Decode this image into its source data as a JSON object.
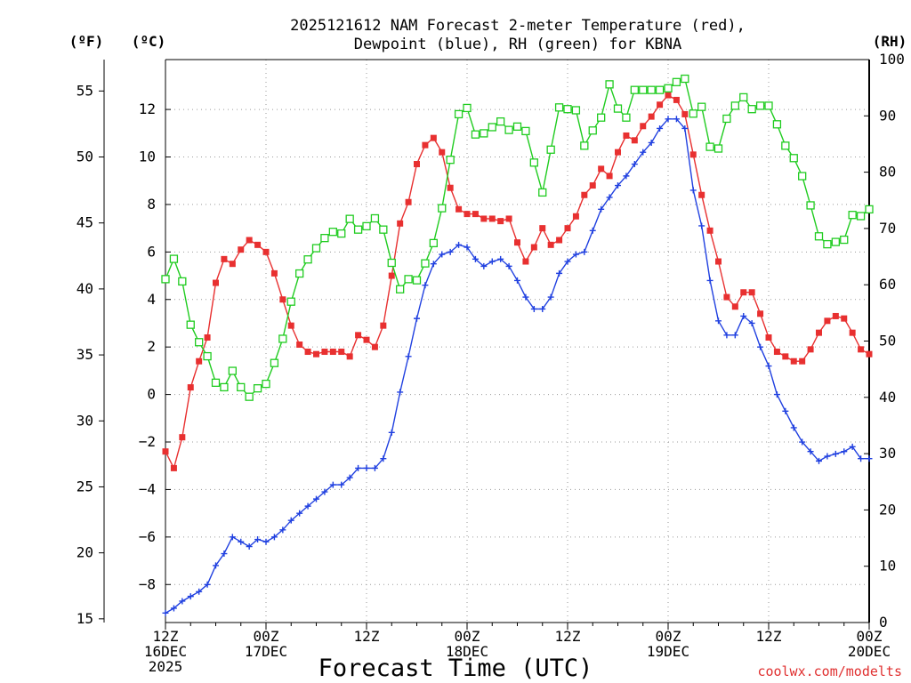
{
  "chart_data": {
    "type": "line",
    "title": [
      "2025121612 NAM Forecast 2-meter Temperature (red),",
      "Dewpoint (blue), RH (green) for KBNA"
    ],
    "xlabel": "Forecast Time (UTC)",
    "credit": "coolwx.com/modelts",
    "units": {
      "fahrenheit": "(ºF)",
      "celsius": "(ºC)",
      "rh": "(RH)"
    },
    "x_hours_range": [
      0,
      84
    ],
    "x_ticks": [
      {
        "hour": 0,
        "lines": [
          "12Z",
          "16DEC",
          "2025"
        ]
      },
      {
        "hour": 12,
        "lines": [
          "00Z",
          "17DEC"
        ]
      },
      {
        "hour": 24,
        "lines": [
          "12Z"
        ]
      },
      {
        "hour": 36,
        "lines": [
          "00Z",
          "18DEC"
        ]
      },
      {
        "hour": 48,
        "lines": [
          "12Z"
        ]
      },
      {
        "hour": 60,
        "lines": [
          "00Z",
          "19DEC"
        ]
      },
      {
        "hour": 72,
        "lines": [
          "12Z"
        ]
      },
      {
        "hour": 84,
        "lines": [
          "00Z",
          "20DEC"
        ]
      }
    ],
    "ylim_celsius": [
      -9.6,
      14.1
    ],
    "y_ticks_celsius": [
      "12",
      "10",
      "8",
      "6",
      "4",
      "2",
      "0",
      "−2",
      "−4",
      "−6",
      "−8"
    ],
    "y_ticks_fahrenheit": [
      "55",
      "50",
      "45",
      "40",
      "35",
      "30",
      "25",
      "20",
      "15"
    ],
    "ylim_rh": [
      0,
      100
    ],
    "y_ticks_rh": [
      "100",
      "90",
      "80",
      "70",
      "60",
      "50",
      "40",
      "30",
      "20",
      "10",
      "0"
    ],
    "hours": [
      0,
      1,
      2,
      3,
      4,
      5,
      6,
      7,
      8,
      9,
      10,
      11,
      12,
      13,
      14,
      15,
      16,
      17,
      18,
      19,
      20,
      21,
      22,
      23,
      24,
      25,
      26,
      27,
      28,
      29,
      30,
      31,
      32,
      33,
      34,
      35,
      36,
      37,
      38,
      39,
      40,
      41,
      42,
      43,
      44,
      45,
      46,
      47,
      48,
      49,
      50,
      51,
      52,
      53,
      54,
      55,
      56,
      57,
      58,
      59,
      60,
      61,
      62,
      63,
      64,
      65,
      66,
      67,
      68,
      69,
      70,
      71,
      72,
      73,
      74,
      75,
      76,
      77,
      78,
      79,
      80,
      81,
      82,
      83,
      84
    ],
    "series": [
      {
        "name": "Temperature (°C)",
        "color": "#e83030",
        "marker": "filled-square",
        "values": [
          -2.4,
          -3.1,
          -1.8,
          0.3,
          1.4,
          2.4,
          4.7,
          5.7,
          5.5,
          6.1,
          6.5,
          6.3,
          6.0,
          5.1,
          4.0,
          2.9,
          2.1,
          1.8,
          1.7,
          1.8,
          1.8,
          1.8,
          1.6,
          2.5,
          2.3,
          2.0,
          2.9,
          5.0,
          7.2,
          8.1,
          9.7,
          10.5,
          10.8,
          10.2,
          8.7,
          7.8,
          7.6,
          7.6,
          7.4,
          7.4,
          7.3,
          7.4,
          6.4,
          5.6,
          6.2,
          7.0,
          6.3,
          6.5,
          7.0,
          7.5,
          8.4,
          8.8,
          9.5,
          9.2,
          10.2,
          10.9,
          10.7,
          11.3,
          11.7,
          12.2,
          12.6,
          12.4,
          11.8,
          10.1,
          8.4,
          6.9,
          5.6,
          4.1,
          3.7,
          4.3,
          4.3,
          3.4,
          2.4,
          1.8,
          1.6,
          1.4,
          1.4,
          1.9,
          2.6,
          3.1,
          3.3,
          3.2,
          2.6,
          1.9,
          1.7
        ]
      },
      {
        "name": "Dewpoint (°C)",
        "color": "#2040e0",
        "marker": "plus",
        "values": [
          -9.2,
          -9.0,
          -8.7,
          -8.5,
          -8.3,
          -8.0,
          -7.2,
          -6.7,
          -6.0,
          -6.2,
          -6.4,
          -6.1,
          -6.2,
          -6.0,
          -5.7,
          -5.3,
          -5.0,
          -4.7,
          -4.4,
          -4.1,
          -3.8,
          -3.8,
          -3.5,
          -3.1,
          -3.1,
          -3.1,
          -2.7,
          -1.6,
          0.1,
          1.6,
          3.2,
          4.6,
          5.5,
          5.9,
          6.0,
          6.3,
          6.2,
          5.7,
          5.4,
          5.6,
          5.7,
          5.4,
          4.8,
          4.1,
          3.6,
          3.6,
          4.1,
          5.1,
          5.6,
          5.9,
          6.0,
          6.9,
          7.8,
          8.3,
          8.8,
          9.2,
          9.7,
          10.2,
          10.6,
          11.2,
          11.6,
          11.6,
          11.2,
          8.6,
          7.1,
          4.8,
          3.1,
          2.5,
          2.5,
          3.3,
          3.0,
          2.0,
          1.2,
          0.0,
          -0.7,
          -1.4,
          -2.0,
          -2.4,
          -2.8,
          -2.6,
          -2.5,
          -2.4,
          -2.2,
          -2.7,
          -2.7
        ]
      },
      {
        "name": "RH (%)",
        "color": "#20cc20",
        "marker": "open-square",
        "values": [
          61.0,
          64.6,
          60.6,
          52.9,
          49.8,
          47.3,
          42.6,
          41.8,
          44.7,
          41.8,
          40.1,
          41.6,
          42.4,
          46.1,
          50.4,
          57.0,
          62.0,
          64.5,
          66.5,
          68.3,
          69.4,
          69.1,
          71.7,
          69.8,
          70.4,
          71.8,
          69.8,
          63.9,
          59.2,
          61.0,
          60.8,
          63.8,
          67.4,
          73.6,
          82.2,
          90.3,
          91.4,
          86.7,
          86.9,
          88.0,
          89.0,
          87.5,
          88.1,
          87.3,
          81.7,
          76.4,
          84.0,
          91.5,
          91.2,
          91.0,
          84.7,
          87.4,
          89.7,
          95.6,
          91.3,
          89.7,
          94.6,
          94.6,
          94.6,
          94.6,
          94.9,
          96.0,
          96.6,
          90.4,
          91.6,
          84.5,
          84.2,
          89.5,
          91.8,
          93.3,
          91.2,
          91.8,
          91.8,
          88.5,
          84.7,
          82.5,
          79.3,
          74.1,
          68.6,
          67.2,
          67.6,
          68.0,
          72.4,
          72.2,
          73.4
        ]
      }
    ]
  }
}
